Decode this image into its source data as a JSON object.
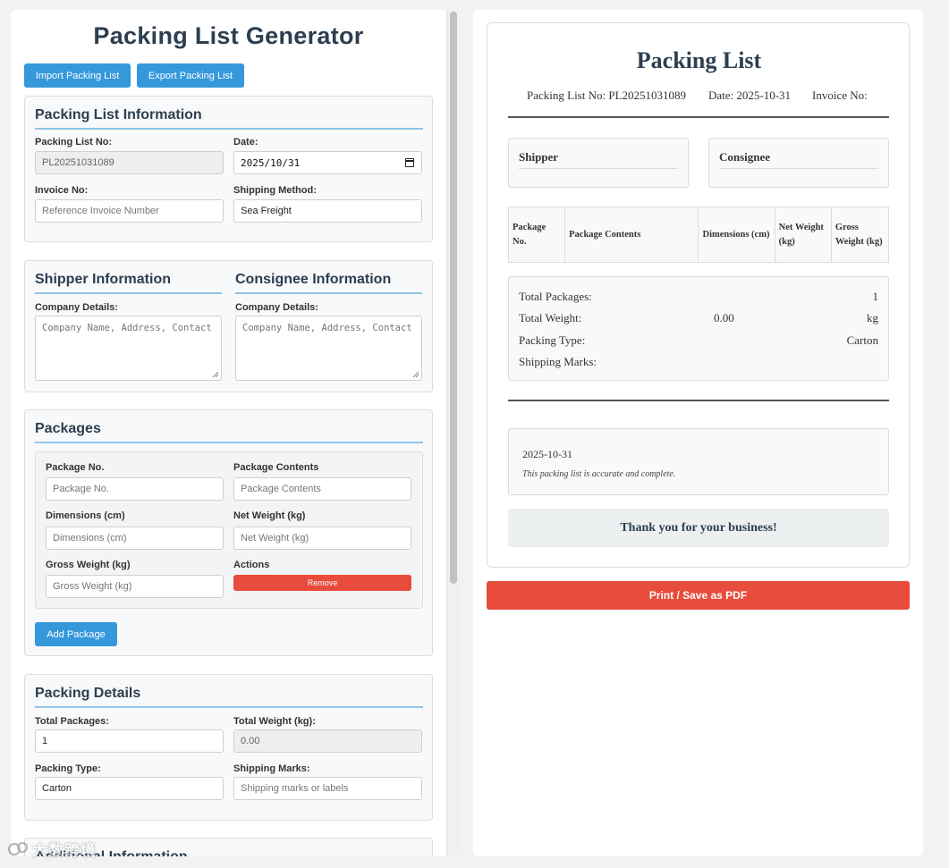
{
  "app": {
    "title": "Packing List Generator",
    "import_label": "Import Packing List",
    "export_label": "Export Packing List"
  },
  "info": {
    "title": "Packing List Information",
    "packing_no_label": "Packing List No:",
    "packing_no_value": "PL20251031089",
    "date_label": "Date:",
    "date_value": "2025/10/31",
    "invoice_label": "Invoice No:",
    "invoice_placeholder": "Reference Invoice Number",
    "shipping_method_label": "Shipping Method:",
    "shipping_method_value": "Sea Freight"
  },
  "parties": {
    "shipper_title": "Shipper Information",
    "consignee_title": "Consignee Information",
    "company_label": "Company Details:",
    "company_placeholder": "Company Name, Address, Contact"
  },
  "packages": {
    "title": "Packages",
    "package_no_label": "Package No.",
    "package_no_placeholder": "Package No.",
    "contents_label": "Package Contents",
    "contents_placeholder": "Package Contents",
    "dimensions_label": "Dimensions (cm)",
    "dimensions_placeholder": "Dimensions (cm)",
    "net_weight_label": "Net Weight (kg)",
    "net_weight_placeholder": "Net Weight (kg)",
    "gross_weight_label": "Gross Weight (kg)",
    "gross_weight_placeholder": "Gross Weight (kg)",
    "actions_label": "Actions",
    "remove_label": "Remove",
    "add_label": "Add Package"
  },
  "details": {
    "title": "Packing Details",
    "total_packages_label": "Total Packages:",
    "total_packages_value": "1",
    "total_weight_label": "Total Weight (kg):",
    "total_weight_value": "0.00",
    "packing_type_label": "Packing Type:",
    "packing_type_value": "Carton",
    "shipping_marks_label": "Shipping Marks:",
    "shipping_marks_placeholder": "Shipping marks or labels"
  },
  "next_section_title": "Additional Information",
  "preview": {
    "title": "Packing List",
    "meta_no": "Packing List No: PL20251031089",
    "meta_date": "Date: 2025-10-31",
    "meta_invoice": "Invoice No:",
    "shipper": "Shipper",
    "consignee": "Consignee",
    "table_headers": [
      "Package No.",
      "Package Contents",
      "Dimensions (cm)",
      "Net Weight (kg)",
      "Gross Weight (kg)"
    ],
    "summary": {
      "total_packages_label": "Total Packages:",
      "total_packages_value": "1",
      "total_weight_label": "Total Weight:",
      "total_weight_value": "0.00",
      "total_weight_unit": "kg",
      "packing_type_label": "Packing Type:",
      "packing_type_value": "Carton",
      "shipping_marks_label": "Shipping Marks:"
    },
    "footer_date": "2025-10-31",
    "footer_note": "This packing list is accurate and complete.",
    "thank_you": "Thank you for your business!",
    "print_label": "Print / Save as PDF"
  },
  "watermark": "大数跨境",
  "colors": {
    "primary": "#3498db",
    "danger": "#e74c3c",
    "heading": "#2c3e50",
    "accent_rule": "#8ec5e8"
  }
}
